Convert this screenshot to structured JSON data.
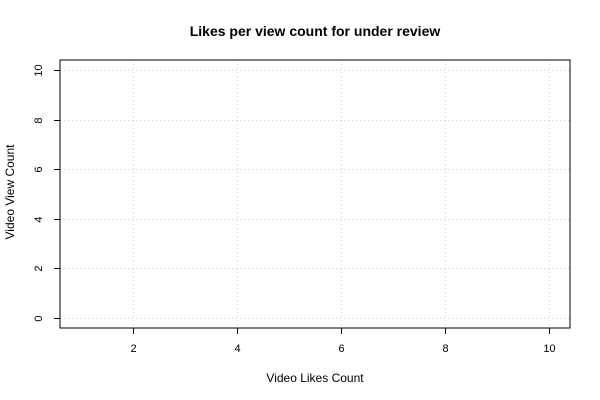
{
  "chart_data": {
    "type": "scatter",
    "title": "Likes per view count for under review",
    "xlabel": "Video Likes Count",
    "ylabel": "Video View Count",
    "xlim": [
      0.6,
      10.4
    ],
    "ylim": [
      -0.4,
      10.4
    ],
    "x_ticks": [
      2,
      4,
      6,
      8,
      10
    ],
    "y_ticks": [
      0,
      2,
      4,
      6,
      8,
      10
    ],
    "grid": true,
    "grid_style": "dotted",
    "grid_color": "#d3d3d3",
    "series": [
      {
        "x": [],
        "y": []
      }
    ]
  }
}
